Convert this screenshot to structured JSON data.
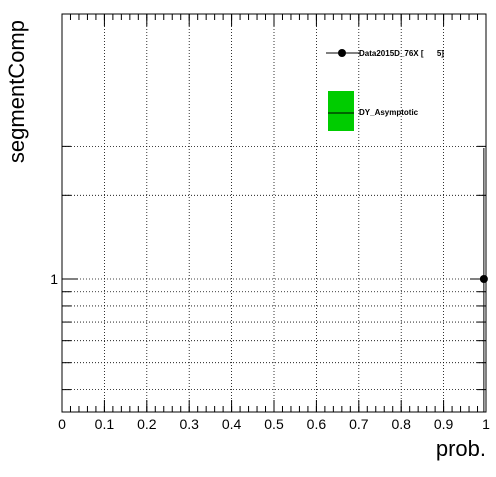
{
  "chart_data": {
    "type": "scatter",
    "xlabel": "prob.",
    "ylabel": "segmentComp",
    "x_ticks": [
      "0",
      "0.1",
      "0.2",
      "0.3",
      "0.4",
      "0.5",
      "0.6",
      "0.7",
      "0.8",
      "0.9",
      "1"
    ],
    "xlim": [
      0,
      1.0
    ],
    "y_scale": "log",
    "y_tick_labels": [
      "1"
    ],
    "grid": true,
    "legend_position": "top-right",
    "series": [
      {
        "name": "Data2015D_76X [      5]",
        "style": "markers-with-error-bars",
        "color": "#000000",
        "points": [
          {
            "x": 0.995,
            "y": 1
          }
        ]
      },
      {
        "name": "DY_Asymptotic",
        "style": "filled-band",
        "color": "#00cc00",
        "points": []
      }
    ]
  }
}
